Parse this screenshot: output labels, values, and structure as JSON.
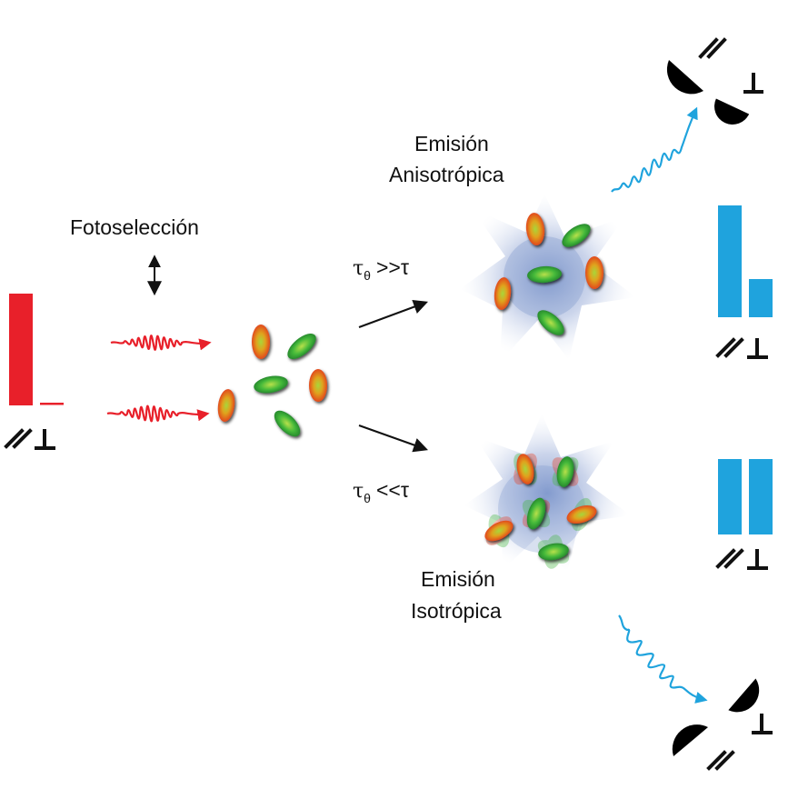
{
  "labels": {
    "photoselection": "Fotoselección",
    "aniso_line1": "Emisión",
    "aniso_line2": "Anisotrópica",
    "iso_line1": "Emisión",
    "iso_line2": "Isotrópica",
    "tau_slow": "τ",
    "tau_slow_sub": "θ",
    "tau_slow_rel": ">>τ",
    "tau_fast": "τ",
    "tau_fast_sub": "θ",
    "tau_fast_rel": "<<τ"
  },
  "colors": {
    "excitation": "#e8202a",
    "emission": "#1fa3dd",
    "detector": "#000000",
    "molecule_red": "#e53a1e",
    "molecule_green": "#3fb53a",
    "glow": "#8aa0cf"
  },
  "intensity_bars": {
    "excitation": {
      "parallel": 1.0,
      "perpendicular": 0.0
    },
    "anisotropic": {
      "parallel": 1.0,
      "perpendicular": 0.34
    },
    "isotropic": {
      "parallel": 1.0,
      "perpendicular": 1.0
    }
  },
  "icons": [
    "polarization-parallel-icon",
    "polarization-perpendicular-icon",
    "detector-icon",
    "wave-icon",
    "arrow-icon"
  ]
}
